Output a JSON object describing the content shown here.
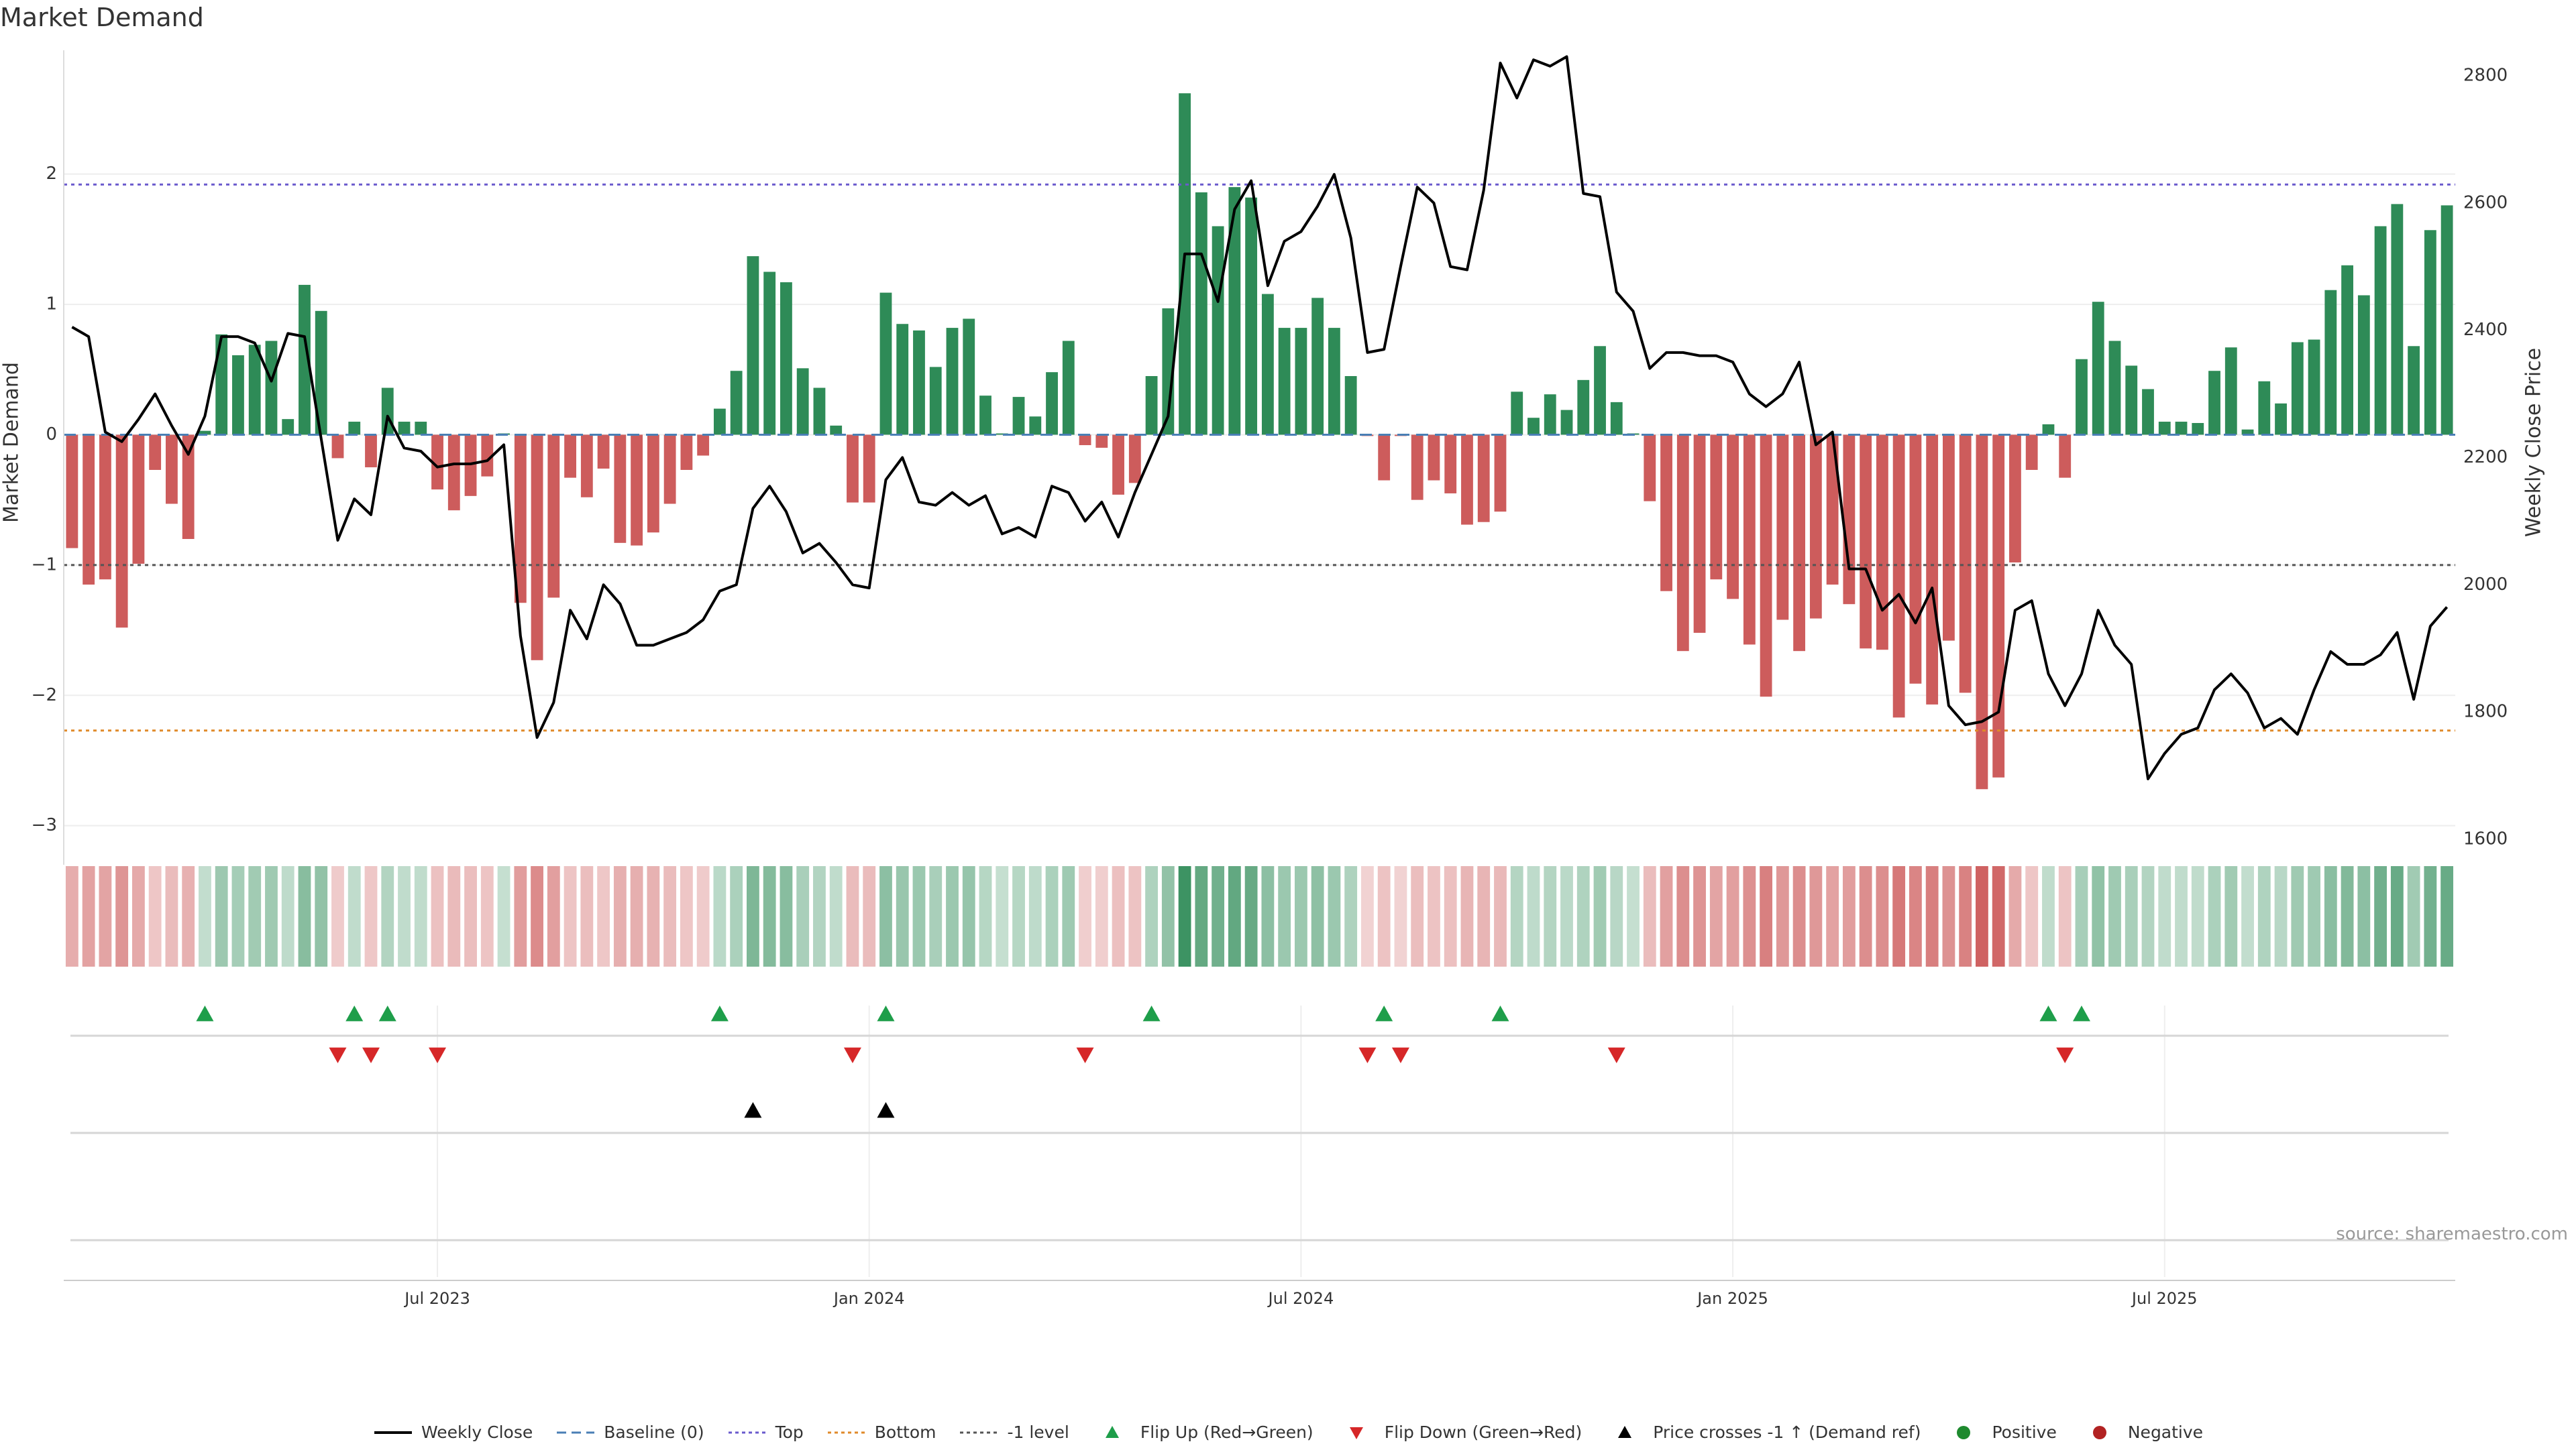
{
  "title": "Market Demand",
  "source": "source: sharemaestro.com",
  "colors": {
    "positive_bar": "#2e8b57",
    "negative_bar": "#cd5c5c",
    "price_line": "#000000",
    "top_line": "#6a5acd",
    "bottom_line": "#e08a2a",
    "minus1_line": "#555555",
    "baseline": "#4a7fb5",
    "flip_up": "#1e9e4a",
    "flip_down": "#d62728",
    "cross_marker": "#000000"
  },
  "legend": [
    {
      "label": "Weekly Close",
      "kind": "line",
      "color": "#000000"
    },
    {
      "label": "Baseline (0)",
      "kind": "dash",
      "color": "#4a7fb5"
    },
    {
      "label": "Top",
      "kind": "dot",
      "color": "#6a5acd"
    },
    {
      "label": "Bottom",
      "kind": "dot",
      "color": "#e08a2a"
    },
    {
      "label": "-1 level",
      "kind": "dot",
      "color": "#555555"
    },
    {
      "label": "Flip Up (Red→Green)",
      "kind": "tri-up",
      "color": "#1e9e4a"
    },
    {
      "label": "Flip Down (Green→Red)",
      "kind": "tri-down",
      "color": "#d62728"
    },
    {
      "label": "Price crosses -1 ↑ (Demand ref)",
      "kind": "tri-up",
      "color": "#000000"
    },
    {
      "label": "Positive",
      "kind": "circle",
      "color": "#1e8a2e"
    },
    {
      "label": "Negative",
      "kind": "circle",
      "color": "#b22222"
    }
  ],
  "chart_data": {
    "type": "bar",
    "title": "Market Demand",
    "ylabel": "Market Demand",
    "y2label": "Weekly Close Price",
    "ylim": [
      -3.3,
      2.95
    ],
    "y2lim": [
      1560,
      2840
    ],
    "yticks": [
      2,
      1,
      0,
      -1,
      -2,
      -3
    ],
    "ytick_labels": [
      "2",
      "1",
      "0",
      "−1",
      "−2",
      "−3"
    ],
    "y2ticks": [
      2800,
      2600,
      2400,
      2200,
      2000,
      1800,
      1600
    ],
    "xticks": [
      {
        "week": 22,
        "label": "Jul 2023"
      },
      {
        "week": 48,
        "label": "Jan 2024"
      },
      {
        "week": 74,
        "label": "Jul 2024"
      },
      {
        "week": 100,
        "label": "Jan 2025"
      },
      {
        "week": 126,
        "label": "Jul 2025"
      }
    ],
    "reference_lines": {
      "top": 1.92,
      "bottom": -2.27,
      "minus1": -1.0,
      "baseline": 0
    },
    "demand": [
      -0.87,
      -1.15,
      -1.11,
      -1.48,
      -0.99,
      -0.27,
      -0.53,
      -0.8,
      0.03,
      0.77,
      0.61,
      0.69,
      0.72,
      0.12,
      1.15,
      0.95,
      -0.18,
      0.1,
      -0.25,
      0.36,
      0.1,
      0.1,
      -0.42,
      -0.58,
      -0.47,
      -0.32,
      0.01,
      -1.29,
      -1.73,
      -1.25,
      -0.33,
      -0.48,
      -0.26,
      -0.83,
      -0.85,
      -0.75,
      -0.53,
      -0.27,
      -0.16,
      0.2,
      0.49,
      1.37,
      1.25,
      1.17,
      0.51,
      0.36,
      0.07,
      -0.52,
      -0.52,
      1.09,
      0.85,
      0.8,
      0.52,
      0.82,
      0.89,
      0.3,
      0.01,
      0.29,
      0.14,
      0.48,
      0.72,
      -0.08,
      -0.1,
      -0.46,
      -0.37,
      0.45,
      0.97,
      2.62,
      1.86,
      1.6,
      1.9,
      1.82,
      1.08,
      0.82,
      0.82,
      1.05,
      0.82,
      0.45,
      -0.01,
      -0.35,
      -0.01,
      -0.5,
      -0.35,
      -0.45,
      -0.69,
      -0.67,
      -0.59,
      0.33,
      0.13,
      0.31,
      0.19,
      0.42,
      0.68,
      0.25,
      0.01,
      -0.51,
      -1.2,
      -1.66,
      -1.52,
      -1.11,
      -1.26,
      -1.61,
      -2.01,
      -1.42,
      -1.66,
      -1.41,
      -1.15,
      -1.3,
      -1.64,
      -1.65,
      -2.17,
      -1.91,
      -2.07,
      -1.58,
      -1.98,
      -2.72,
      -2.63,
      -0.98,
      -0.27,
      0.08,
      -0.33,
      0.58,
      1.02,
      0.72,
      0.53,
      0.35,
      0.1,
      0.1,
      0.09,
      0.49,
      0.67,
      0.04,
      0.41,
      0.24,
      0.71,
      0.73,
      1.11,
      1.3,
      1.07,
      1.6,
      1.77,
      0.68,
      1.57,
      1.76
    ],
    "price": [
      2405,
      2390,
      2240,
      2225,
      2260,
      2300,
      2250,
      2205,
      2265,
      2390,
      2390,
      2380,
      2320,
      2395,
      2390,
      2230,
      2070,
      2135,
      2110,
      2265,
      2215,
      2210,
      2185,
      2190,
      2190,
      2195,
      2220,
      1920,
      1760,
      1815,
      1960,
      1915,
      2000,
      1970,
      1905,
      1905,
      1915,
      1925,
      1945,
      1990,
      2000,
      2120,
      2155,
      2115,
      2050,
      2065,
      2035,
      2000,
      1995,
      2165,
      2200,
      2130,
      2125,
      2145,
      2125,
      2140,
      2080,
      2090,
      2075,
      2155,
      2145,
      2100,
      2130,
      2075,
      2145,
      2205,
      2265,
      2520,
      2520,
      2445,
      2590,
      2635,
      2470,
      2540,
      2555,
      2595,
      2645,
      2545,
      2365,
      2370,
      2500,
      2625,
      2600,
      2500,
      2495,
      2620,
      2820,
      2765,
      2825,
      2815,
      2830,
      2615,
      2610,
      2460,
      2430,
      2340,
      2365,
      2365,
      2360,
      2360,
      2350,
      2300,
      2280,
      2300,
      2350,
      2220,
      2240,
      2025,
      2025,
      1960,
      1985,
      1940,
      1995,
      1810,
      1780,
      1785,
      1800,
      1960,
      1975,
      1860,
      1810,
      1860,
      1960,
      1905,
      1875,
      1695,
      1735,
      1765,
      1775,
      1835,
      1860,
      1830,
      1775,
      1790,
      1765,
      1835,
      1895,
      1875,
      1875,
      1890,
      1925,
      1820,
      1935,
      1965
    ],
    "flip_up_weeks": [
      8,
      17,
      19,
      39,
      49,
      65,
      79,
      86,
      119,
      121
    ],
    "flip_down_weeks": [
      16,
      18,
      22,
      47,
      61,
      78,
      80,
      93,
      120
    ],
    "price_cross_weeks": [
      41,
      49
    ]
  }
}
